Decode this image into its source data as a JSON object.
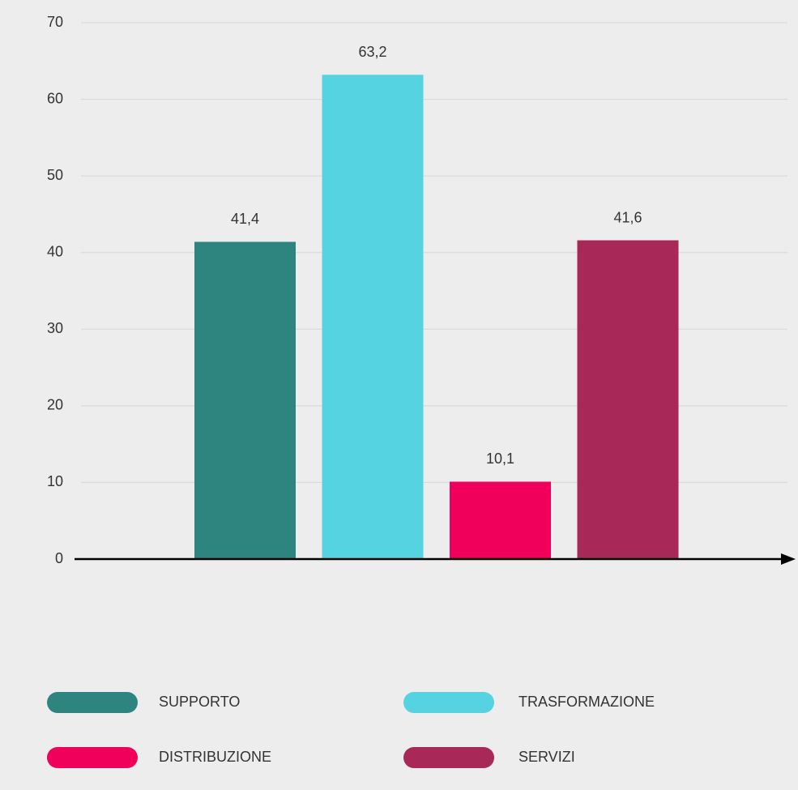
{
  "chart_data": {
    "type": "bar",
    "series": [
      {
        "name": "SUPPORTO",
        "color": "#2e8580",
        "values": [
          41.4
        ],
        "value_labels": [
          "41,4"
        ]
      },
      {
        "name": "TRASFORMAZIONE",
        "color": "#56d3e0",
        "values": [
          63.2
        ],
        "value_labels": [
          "63,2"
        ]
      },
      {
        "name": "DISTRIBUZIONE",
        "color": "#f0005a",
        "values": [
          10.1
        ],
        "value_labels": [
          "10,1"
        ]
      },
      {
        "name": "SERVIZI",
        "color": "#a82857",
        "values": [
          41.6
        ],
        "value_labels": [
          "41,6"
        ]
      }
    ],
    "ylim": [
      0,
      70
    ],
    "yticks": [
      0,
      10,
      20,
      30,
      40,
      50,
      60,
      70
    ],
    "grid": true,
    "legend": "bottom"
  }
}
